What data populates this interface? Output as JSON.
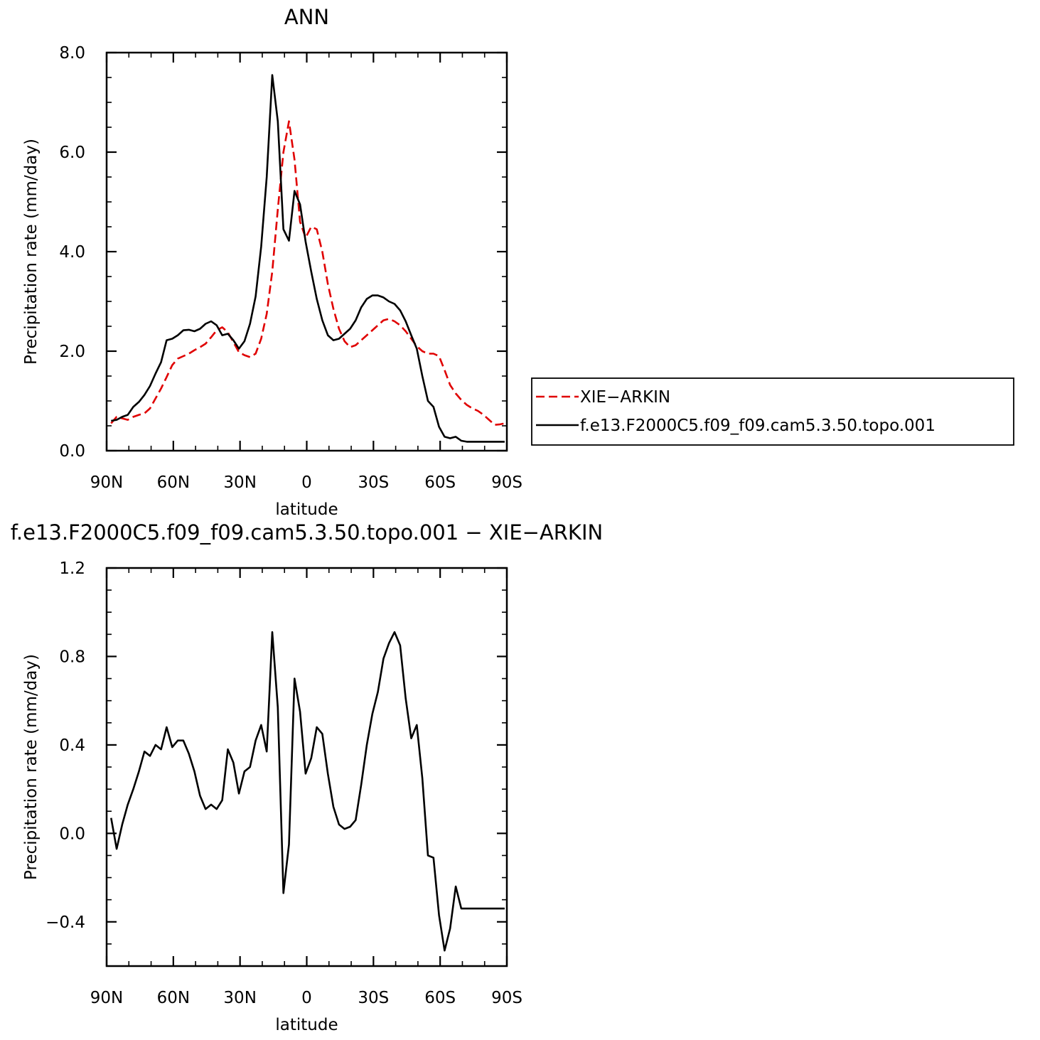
{
  "chart_data": [
    {
      "type": "line",
      "title": "ANN",
      "xlabel": "latitude",
      "ylabel": "Precipitation rate (mm/day)",
      "xlim": [
        -90,
        90
      ],
      "ylim": [
        0,
        8
      ],
      "x_ticks": [
        -90,
        -60,
        -30,
        0,
        30,
        60,
        90
      ],
      "x_tick_labels": [
        "90N",
        "60N",
        "30N",
        "0",
        "30S",
        "60S",
        "90S"
      ],
      "y_ticks": [
        0,
        2,
        4,
        6,
        8
      ],
      "y_tick_labels": [
        "0.0",
        "2.0",
        "4.0",
        "6.0",
        "8.0"
      ],
      "legend_position": "right",
      "series": [
        {
          "name": "XIE−ARKIN",
          "color": "#e00000",
          "dash": "dashed",
          "x": [
            -88.0,
            -85.5,
            -83.0,
            -80.5,
            -78.0,
            -75.5,
            -73.0,
            -70.5,
            -68.0,
            -65.5,
            -63.0,
            -60.5,
            -58.0,
            -55.5,
            -53.0,
            -50.5,
            -48.0,
            -45.5,
            -43.0,
            -40.5,
            -38.0,
            -35.5,
            -33.0,
            -30.5,
            -28.0,
            -25.5,
            -23.0,
            -20.5,
            -18.0,
            -15.5,
            -13.0,
            -10.5,
            -8.0,
            -5.5,
            -3.0,
            -0.5,
            2.0,
            4.5,
            7.0,
            9.5,
            12.0,
            14.5,
            17.0,
            19.5,
            22.0,
            24.5,
            27.0,
            29.5,
            32.0,
            34.5,
            37.0,
            39.5,
            42.0,
            44.5,
            47.0,
            49.5,
            52.0,
            54.5,
            57.0,
            59.5,
            62.0,
            64.5,
            67.0,
            69.5,
            72.0,
            74.5,
            77.0,
            79.5,
            82.0,
            84.5,
            87.0,
            89.0
          ],
          "y": [
            0.55,
            0.68,
            0.65,
            0.62,
            0.68,
            0.72,
            0.75,
            0.85,
            1.05,
            1.25,
            1.48,
            1.72,
            1.85,
            1.9,
            1.95,
            2.02,
            2.08,
            2.15,
            2.28,
            2.42,
            2.48,
            2.38,
            2.18,
            1.98,
            1.92,
            1.88,
            1.95,
            2.25,
            2.75,
            3.6,
            4.85,
            6.0,
            6.62,
            5.85,
            4.6,
            4.28,
            4.5,
            4.45,
            4.0,
            3.35,
            2.85,
            2.45,
            2.2,
            2.08,
            2.12,
            2.22,
            2.32,
            2.42,
            2.52,
            2.62,
            2.65,
            2.6,
            2.52,
            2.4,
            2.25,
            2.1,
            2.0,
            1.95,
            1.95,
            1.9,
            1.62,
            1.32,
            1.15,
            1.02,
            0.92,
            0.85,
            0.8,
            0.72,
            0.62,
            0.52,
            0.53,
            0.55
          ]
        },
        {
          "name": "f.e13.F2000C5.f09_f09.cam5.3.50.topo.001",
          "color": "#000000",
          "dash": "solid",
          "x": [
            -88.0,
            -85.5,
            -83.0,
            -80.5,
            -78.0,
            -75.5,
            -73.0,
            -70.5,
            -68.0,
            -65.5,
            -63.0,
            -60.5,
            -58.0,
            -55.5,
            -53.0,
            -50.5,
            -48.0,
            -45.5,
            -43.0,
            -40.5,
            -38.0,
            -35.5,
            -33.0,
            -30.5,
            -28.0,
            -25.5,
            -23.0,
            -20.5,
            -18.0,
            -15.5,
            -13.0,
            -10.5,
            -8.0,
            -5.5,
            -3.0,
            -0.5,
            2.0,
            4.5,
            7.0,
            9.5,
            12.0,
            14.5,
            17.0,
            19.5,
            22.0,
            24.5,
            27.0,
            29.5,
            32.0,
            34.5,
            37.0,
            39.5,
            42.0,
            44.5,
            47.0,
            49.5,
            52.0,
            54.5,
            57.0,
            59.5,
            62.0,
            64.5,
            67.0,
            69.5,
            72.0,
            74.5,
            77.0,
            79.5,
            82.0,
            84.5,
            87.0,
            89.0
          ],
          "y": [
            0.6,
            0.62,
            0.68,
            0.72,
            0.88,
            0.98,
            1.12,
            1.3,
            1.55,
            1.78,
            2.22,
            2.25,
            2.32,
            2.42,
            2.43,
            2.4,
            2.45,
            2.55,
            2.6,
            2.52,
            2.32,
            2.35,
            2.22,
            2.05,
            2.2,
            2.55,
            3.1,
            4.1,
            5.5,
            7.55,
            6.62,
            4.45,
            4.22,
            5.22,
            4.95,
            4.2,
            3.6,
            3.05,
            2.62,
            2.32,
            2.22,
            2.25,
            2.35,
            2.45,
            2.62,
            2.88,
            3.05,
            3.12,
            3.12,
            3.08,
            3.0,
            2.95,
            2.82,
            2.6,
            2.32,
            2.05,
            1.5,
            1.0,
            0.88,
            0.48,
            0.28,
            0.25,
            0.28,
            0.2,
            0.18,
            0.18,
            0.18,
            0.18,
            0.18,
            0.18,
            0.18,
            0.18
          ]
        }
      ]
    },
    {
      "type": "line",
      "title": "f.e13.F2000C5.f09_f09.cam5.3.50.topo.001 − XIE−ARKIN",
      "xlabel": "latitude",
      "ylabel": "Precipitation rate (mm/day)",
      "xlim": [
        -90,
        90
      ],
      "ylim": [
        -0.6,
        1.2
      ],
      "x_ticks": [
        -90,
        -60,
        -30,
        0,
        30,
        60,
        90
      ],
      "x_tick_labels": [
        "90N",
        "60N",
        "30N",
        "0",
        "30S",
        "60S",
        "90S"
      ],
      "y_ticks": [
        -0.4,
        0.0,
        0.4,
        0.8,
        1.2
      ],
      "y_tick_labels": [
        "−0.4",
        "0.0",
        "0.4",
        "0.8",
        "1.2"
      ],
      "series": [
        {
          "color": "#000000",
          "dash": "solid",
          "x": [
            -88.0,
            -85.5,
            -83.0,
            -80.5,
            -78.0,
            -75.5,
            -73.0,
            -70.5,
            -68.0,
            -65.5,
            -63.0,
            -60.5,
            -58.0,
            -55.5,
            -53.0,
            -50.5,
            -48.0,
            -45.5,
            -43.0,
            -40.5,
            -38.0,
            -35.5,
            -33.0,
            -30.5,
            -28.0,
            -25.5,
            -23.0,
            -20.5,
            -18.0,
            -15.5,
            -13.0,
            -10.5,
            -8.0,
            -5.5,
            -3.0,
            -0.5,
            2.0,
            4.5,
            7.0,
            9.5,
            12.0,
            14.5,
            17.0,
            19.5,
            22.0,
            24.5,
            27.0,
            29.5,
            32.0,
            34.5,
            37.0,
            39.5,
            42.0,
            44.5,
            47.0,
            49.5,
            52.0,
            54.5,
            57.0,
            59.5,
            62.0,
            64.5,
            67.0,
            69.5,
            72.0,
            74.5,
            77.0,
            79.5,
            82.0,
            84.5,
            87.0,
            89.0
          ],
          "y": [
            0.07,
            -0.07,
            0.04,
            0.13,
            0.2,
            0.28,
            0.37,
            0.35,
            0.4,
            0.38,
            0.48,
            0.39,
            0.42,
            0.42,
            0.36,
            0.28,
            0.17,
            0.11,
            0.13,
            0.11,
            0.15,
            0.38,
            0.32,
            0.18,
            0.28,
            0.3,
            0.42,
            0.49,
            0.37,
            0.91,
            0.57,
            -0.27,
            -0.05,
            0.7,
            0.55,
            0.27,
            0.34,
            0.48,
            0.45,
            0.27,
            0.12,
            0.04,
            0.02,
            0.03,
            0.06,
            0.22,
            0.4,
            0.54,
            0.64,
            0.79,
            0.86,
            0.91,
            0.85,
            0.61,
            0.43,
            0.49,
            0.25,
            -0.1,
            -0.11,
            -0.37,
            -0.53,
            -0.43,
            -0.24,
            -0.34,
            -0.34,
            -0.34,
            -0.34,
            -0.34,
            -0.34,
            -0.34,
            -0.34,
            -0.34
          ]
        }
      ]
    }
  ]
}
